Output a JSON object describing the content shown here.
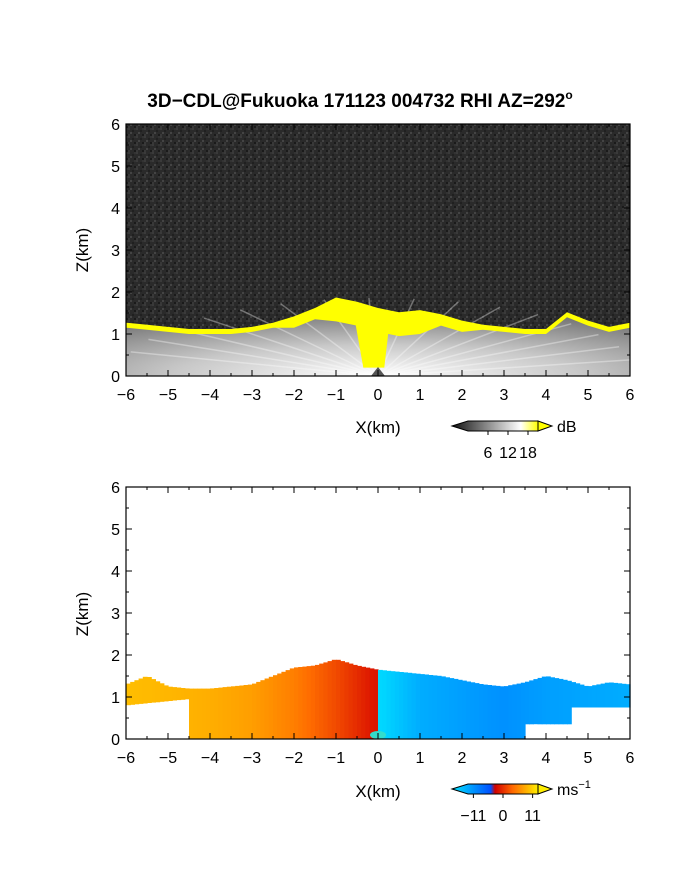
{
  "title_main": "3D−CDL@Fukuoka 171123 004732 RHI AZ=292",
  "title_sup": "o",
  "chart_data": [
    {
      "type": "heatmap",
      "panel": "reflectivity",
      "xlabel": "X(km)",
      "ylabel": "Z(km)",
      "xlim": [
        -6,
        6
      ],
      "ylim": [
        0,
        6
      ],
      "xticks": [
        "−6",
        "−5",
        "−4",
        "−3",
        "−2",
        "−1",
        "0",
        "1",
        "2",
        "3",
        "4",
        "5",
        "6"
      ],
      "yticks": [
        "0",
        "1",
        "2",
        "3",
        "4",
        "5",
        "6"
      ],
      "colorbar": {
        "unit": "dB",
        "ticks": [
          "6",
          "12",
          "18"
        ],
        "tick_values": [
          6,
          12,
          18
        ],
        "range": [
          0,
          21
        ],
        "colors": [
          "#1a1a1a",
          "#ffffff",
          "#ffff00"
        ]
      },
      "cloud_top_km": [
        [
          -6,
          1.25
        ],
        [
          -5.5,
          1.2
        ],
        [
          -5,
          1.15
        ],
        [
          -4.5,
          1.1
        ],
        [
          -4,
          1.1
        ],
        [
          -3.5,
          1.1
        ],
        [
          -3,
          1.15
        ],
        [
          -2.5,
          1.25
        ],
        [
          -2,
          1.4
        ],
        [
          -1.5,
          1.6
        ],
        [
          -1,
          1.85
        ],
        [
          -0.5,
          1.75
        ],
        [
          0,
          1.6
        ],
        [
          0.5,
          1.5
        ],
        [
          1,
          1.55
        ],
        [
          1.5,
          1.45
        ],
        [
          2,
          1.3
        ],
        [
          2.5,
          1.2
        ],
        [
          3,
          1.15
        ],
        [
          3.5,
          1.1
        ],
        [
          4,
          1.1
        ],
        [
          4.5,
          1.5
        ],
        [
          5,
          1.3
        ],
        [
          5.5,
          1.15
        ],
        [
          6,
          1.25
        ]
      ]
    },
    {
      "type": "heatmap",
      "panel": "doppler-velocity",
      "xlabel": "X(km)",
      "ylabel": "Z(km)",
      "xlim": [
        -6,
        6
      ],
      "ylim": [
        0,
        6
      ],
      "xticks": [
        "−6",
        "−5",
        "−4",
        "−3",
        "−2",
        "−1",
        "0",
        "1",
        "2",
        "3",
        "4",
        "5",
        "6"
      ],
      "yticks": [
        "0",
        "1",
        "2",
        "3",
        "4",
        "5",
        "6"
      ],
      "colorbar": {
        "unit": "ms",
        "unit_sup": "−1",
        "ticks": [
          "−11",
          "0",
          "11"
        ],
        "tick_values": [
          -11,
          0,
          11
        ],
        "range": [
          -13,
          13
        ],
        "colors": [
          "#00e5ff",
          "#0050ff",
          "#ff1a00",
          "#ffee00"
        ]
      },
      "echo_top_km": [
        [
          -6,
          1.3
        ],
        [
          -5.5,
          1.5
        ],
        [
          -5,
          1.25
        ],
        [
          -4.5,
          1.2
        ],
        [
          -4,
          1.2
        ],
        [
          -3.5,
          1.25
        ],
        [
          -3,
          1.3
        ],
        [
          -2.5,
          1.5
        ],
        [
          -2,
          1.7
        ],
        [
          -1.5,
          1.75
        ],
        [
          -1,
          1.9
        ],
        [
          -0.5,
          1.75
        ],
        [
          0,
          1.65
        ],
        [
          0.5,
          1.6
        ],
        [
          1,
          1.55
        ],
        [
          1.5,
          1.5
        ],
        [
          2,
          1.4
        ],
        [
          2.5,
          1.3
        ],
        [
          3,
          1.25
        ],
        [
          3.5,
          1.35
        ],
        [
          4,
          1.5
        ],
        [
          4.5,
          1.4
        ],
        [
          5,
          1.25
        ],
        [
          5.5,
          1.35
        ],
        [
          6,
          1.3
        ]
      ],
      "velocity_left_ms": [
        [
          -6,
          10
        ],
        [
          -4,
          9
        ],
        [
          -3,
          8
        ],
        [
          -2,
          6
        ],
        [
          -1,
          3
        ],
        [
          -0.1,
          0
        ]
      ],
      "velocity_right_ms": [
        [
          0.1,
          -12
        ],
        [
          1,
          -9
        ],
        [
          2,
          -8
        ],
        [
          3,
          -7
        ],
        [
          4,
          -8
        ],
        [
          6,
          -9
        ]
      ]
    }
  ]
}
